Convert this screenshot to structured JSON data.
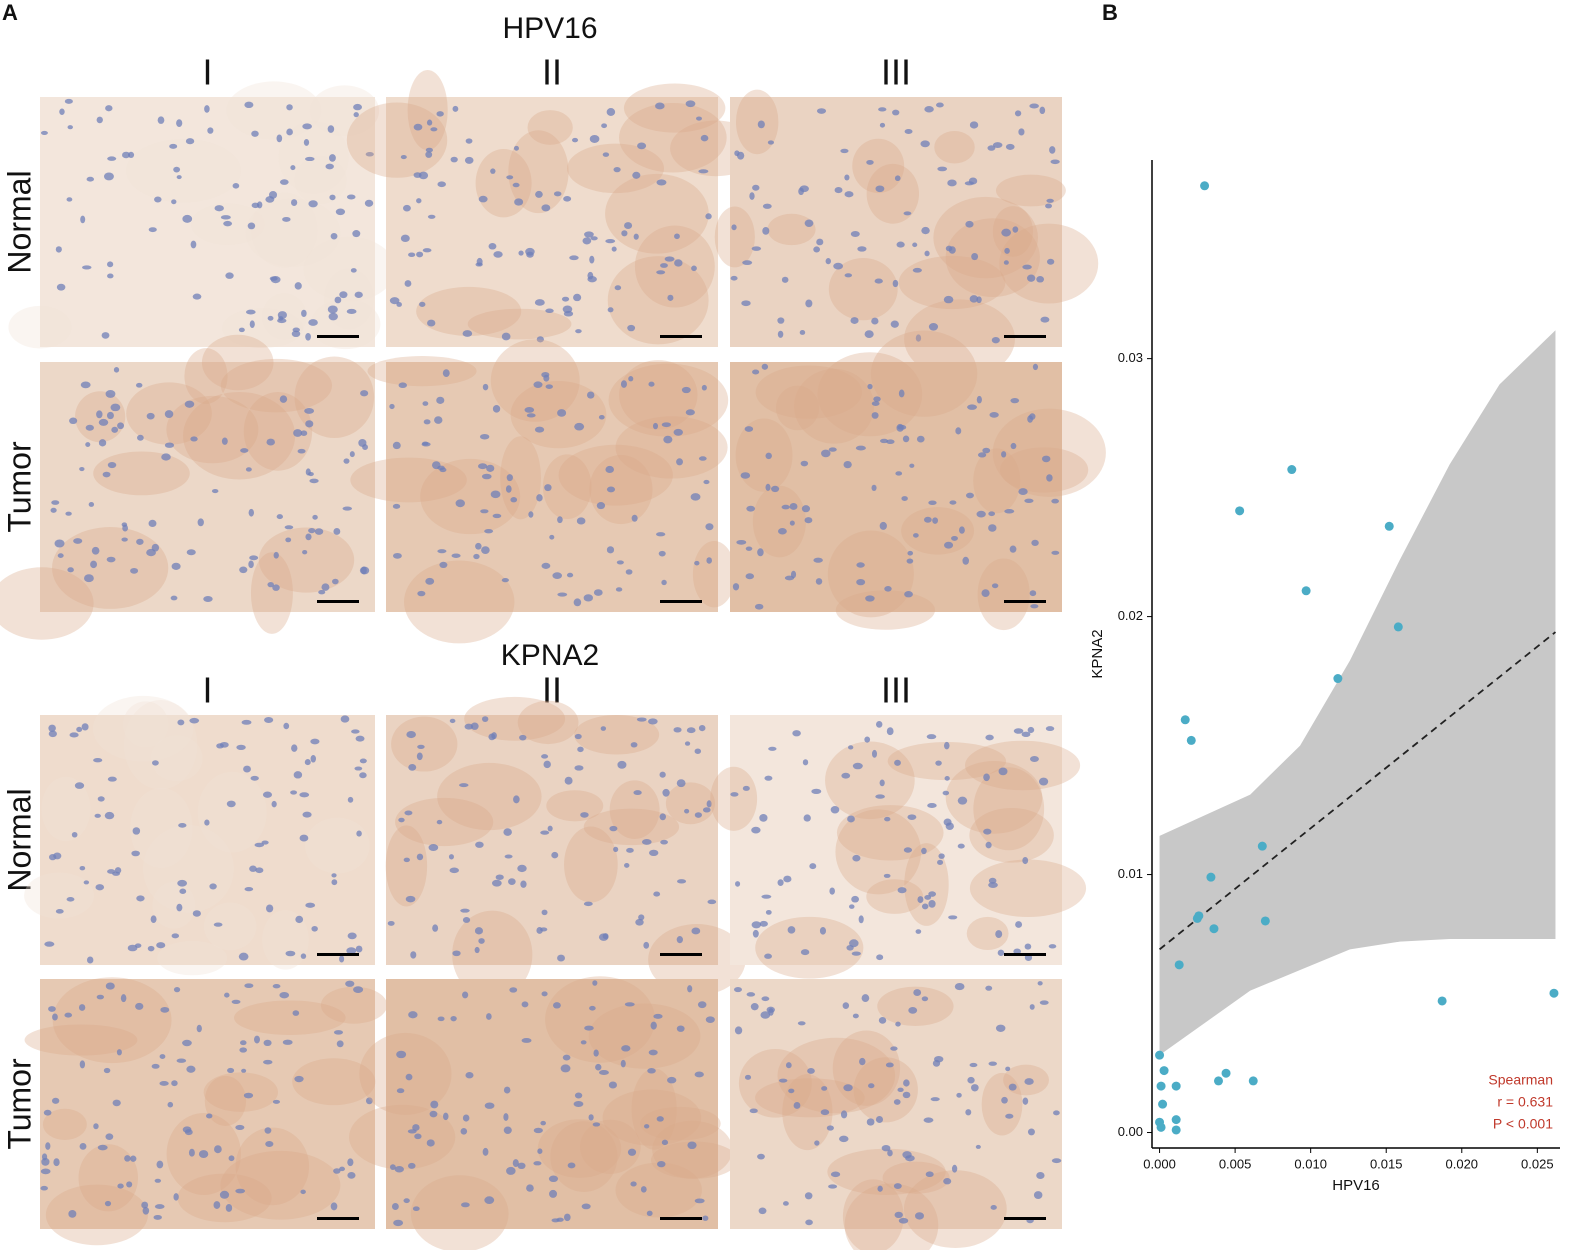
{
  "panel_a": {
    "label": "A",
    "sections": [
      {
        "title": "HPV16",
        "columns": [
          "I",
          "II",
          "III"
        ],
        "rows": [
          "Normal",
          "Tumor"
        ]
      },
      {
        "title": "KPNA2",
        "columns": [
          "I",
          "II",
          "III"
        ],
        "rows": [
          "Normal",
          "Tumor"
        ]
      }
    ]
  },
  "chart_data": {
    "type": "scatter",
    "panel_label": "B",
    "x_label": "HPV16",
    "y_label": "KPNA2",
    "series": [
      {
        "color": "#4bacc6",
        "x": [
          0.00298,
          0.00875,
          0.0053,
          0.0152,
          0.0097,
          0.0158,
          0.0118,
          0.0017,
          0.0021,
          0.0068,
          0.0034,
          0.0026,
          0.0025,
          0.007,
          0.0036,
          0.0013,
          0.0187,
          0.0261,
          0.0,
          0.0003,
          0.0044,
          0.0001,
          0.0011,
          0.0039,
          0.0062,
          0.0002,
          0.0011,
          0.0,
          0.0001,
          0.0011
        ],
        "values": [
          0.0367,
          0.0257,
          0.0241,
          0.0235,
          0.021,
          0.0196,
          0.0176,
          0.016,
          0.0152,
          0.0111,
          0.0099,
          0.0084,
          0.0083,
          0.0082,
          0.0079,
          0.0065,
          0.0051,
          0.0054,
          0.003,
          0.0024,
          0.0023,
          0.0018,
          0.0018,
          0.002,
          0.002,
          0.0011,
          0.0005,
          0.0004,
          0.0002,
          0.0001
        ]
      }
    ],
    "fit": {
      "x": [
        0,
        0.0262
      ],
      "values": [
        0.0071,
        0.0194
      ],
      "color": "#222222"
    },
    "ci_band": {
      "x": [
        0,
        0.006,
        0.0093,
        0.0126,
        0.0159,
        0.0192,
        0.0225,
        0.0262
      ],
      "lower": [
        0.003,
        0.0055,
        0.0063,
        0.0071,
        0.0074,
        0.0075,
        0.0075,
        0.0075
      ],
      "upper": [
        0.0115,
        0.0131,
        0.015,
        0.0183,
        0.0222,
        0.0259,
        0.029,
        0.0311
      ],
      "color": "#c8c8c8"
    },
    "xlim": [
      -0.0005,
      0.0265
    ],
    "ylim": [
      -0.0006,
      0.0377
    ],
    "xticks": [
      {
        "value": 0,
        "label": "0.000"
      },
      0.005,
      {
        "value": 0.01,
        "label": "0.010"
      },
      0.015,
      {
        "value": 0.02,
        "label": "0.020"
      },
      0.025
    ],
    "yticks": [
      {
        "value": 0,
        "label": "0.00"
      },
      0.01,
      0.02,
      0.03
    ],
    "annotations": [
      "Spearman",
      "r = 0.631",
      "P < 0.001"
    ],
    "annotation_color": "#c0392b"
  }
}
